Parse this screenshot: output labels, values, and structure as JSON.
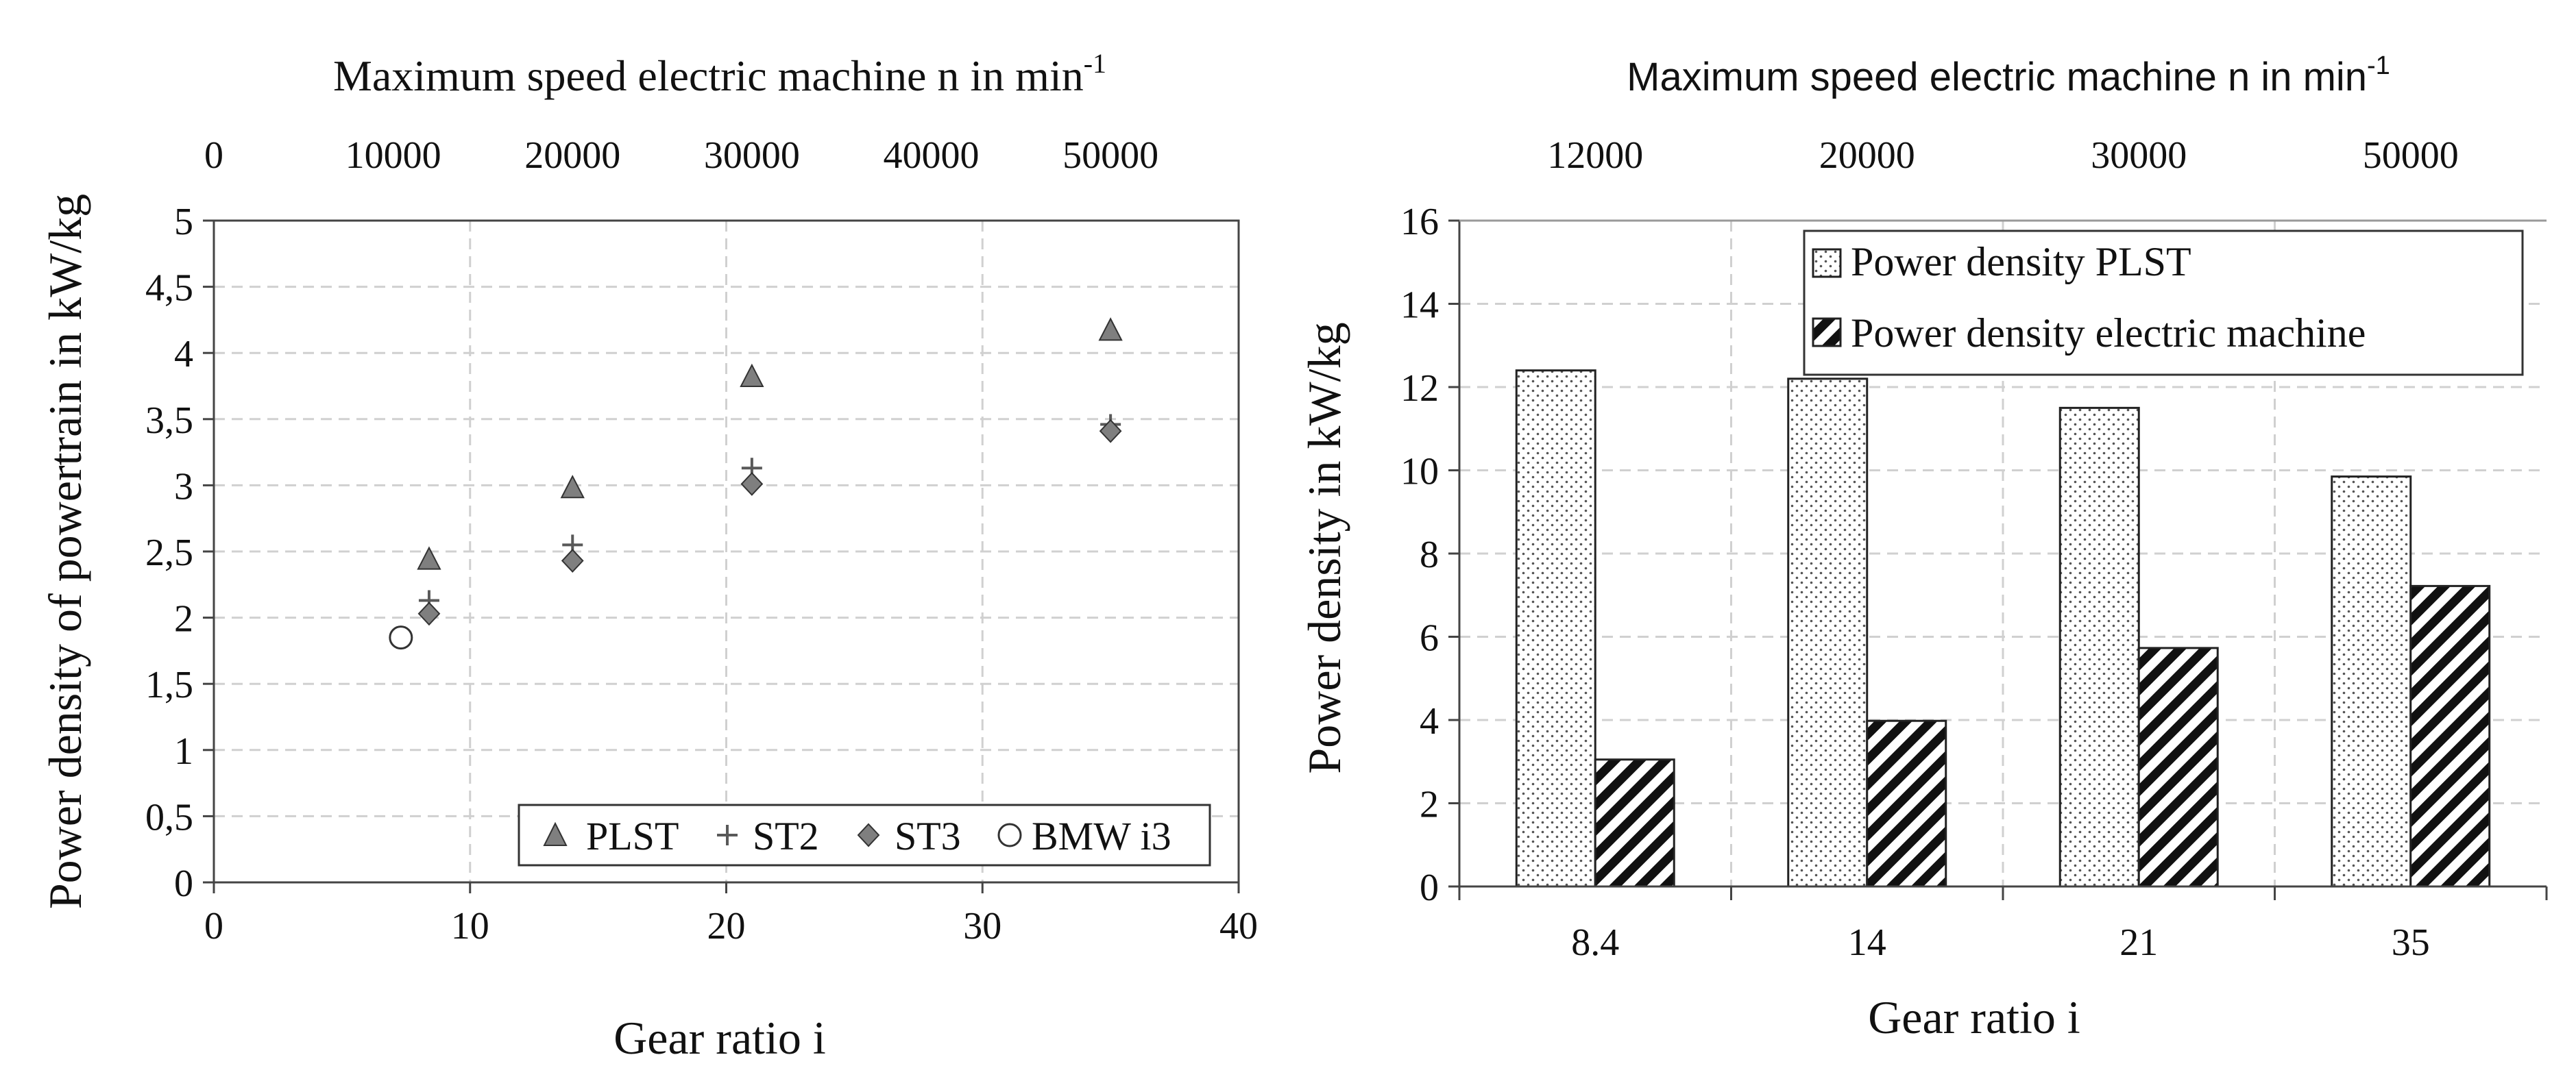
{
  "chart_data": [
    {
      "type": "scatter",
      "ylabel": "Power density of powertrain in kW/kg",
      "xlabel": "Gear ratio i",
      "top_axis_label": "Maximum speed electric machine n in min",
      "top_axis_label_sup": "-1",
      "xlim": [
        0,
        40
      ],
      "ylim": [
        0,
        5
      ],
      "x_ticks": [
        "0",
        "10",
        "20",
        "30",
        "40"
      ],
      "y_ticks": [
        "0",
        "0,5",
        "1",
        "1,5",
        "2",
        "2,5",
        "3",
        "3,5",
        "4",
        "4,5",
        "5"
      ],
      "top_ticks": [
        "0",
        "10000",
        "20000",
        "30000",
        "40000",
        "50000"
      ],
      "grid": true,
      "legend_position": "bottom-right",
      "series": [
        {
          "name": "PLST",
          "marker": "triangle",
          "color": "#7f7f7f",
          "x": [
            8.4,
            14,
            21,
            35
          ],
          "y": [
            2.44,
            2.98,
            3.82,
            4.17
          ]
        },
        {
          "name": "ST2",
          "marker": "plus",
          "color": "#595959",
          "x": [
            8.4,
            14,
            21,
            35
          ],
          "y": [
            2.13,
            2.55,
            3.13,
            3.46
          ]
        },
        {
          "name": "ST3",
          "marker": "diamond",
          "color": "#7f7f7f",
          "x": [
            8.4,
            14,
            21,
            35
          ],
          "y": [
            2.03,
            2.43,
            3.01,
            3.41
          ]
        },
        {
          "name": "BMW i3",
          "marker": "circle",
          "color": "#ffffff",
          "x": [
            7.3
          ],
          "y": [
            1.85
          ]
        }
      ]
    },
    {
      "type": "bar",
      "ylabel": "Power density in kW/kg",
      "xlabel": "Gear ratio i",
      "top_axis_label": "Maximum speed electric machine n in min",
      "top_axis_label_sup": "-1",
      "categories": [
        "8.4",
        "14",
        "21",
        "35"
      ],
      "top_categories": [
        "12000",
        "20000",
        "30000",
        "50000"
      ],
      "ylim": [
        0,
        16
      ],
      "y_ticks": [
        "0",
        "2",
        "4",
        "6",
        "8",
        "10",
        "12",
        "14",
        "16"
      ],
      "grid": true,
      "legend_position": "top-right",
      "series": [
        {
          "name": "Power density PLST",
          "pattern": "dotted",
          "values": [
            12.4,
            12.2,
            11.5,
            9.85
          ]
        },
        {
          "name": "Power density electric machine",
          "pattern": "hatched",
          "values": [
            3.05,
            3.98,
            5.73,
            7.22
          ]
        }
      ]
    }
  ]
}
